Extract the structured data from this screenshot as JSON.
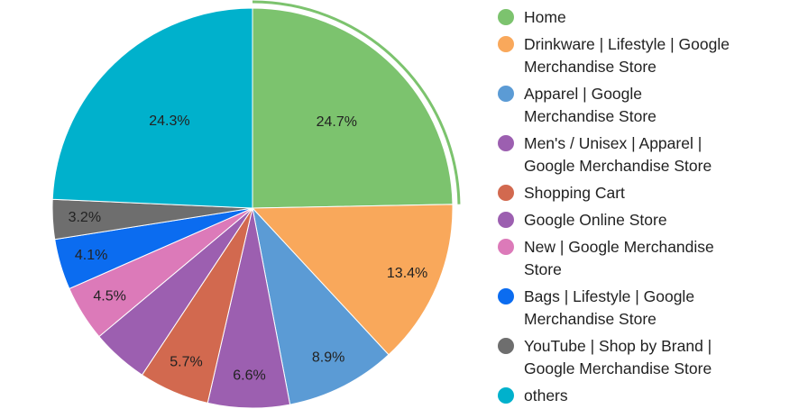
{
  "chart_data": {
    "type": "pie",
    "categories": [
      "Home",
      "Drinkware | Lifestyle | Google Merchandise Store",
      "Apparel | Google Merchandise Store",
      "Men's / Unisex | Apparel | Google Merchandise Store",
      "Shopping Cart",
      "Google Online Store",
      "New | Google Merchandise Store",
      "Bags | Lifestyle | Google Merchandise Store",
      "YouTube | Shop by Brand | Google Merchandise Store",
      "others"
    ],
    "values": [
      24.7,
      13.4,
      8.9,
      6.6,
      5.7,
      4.6,
      4.5,
      4.1,
      3.2,
      24.3
    ],
    "value_labels": [
      "24.7%",
      "13.4%",
      "8.9%",
      "6.6%",
      "5.7%",
      null,
      "4.5%",
      "4.1%",
      "3.2%",
      "24.3%"
    ],
    "colors": [
      "#7cc36e",
      "#f9a85b",
      "#5b9bd5",
      "#9c5fb0",
      "#d2694f",
      "#9c5fb0",
      "#dc7ab9",
      "#0b6cf0",
      "#6e6e6e",
      "#00b1cc"
    ]
  }
}
